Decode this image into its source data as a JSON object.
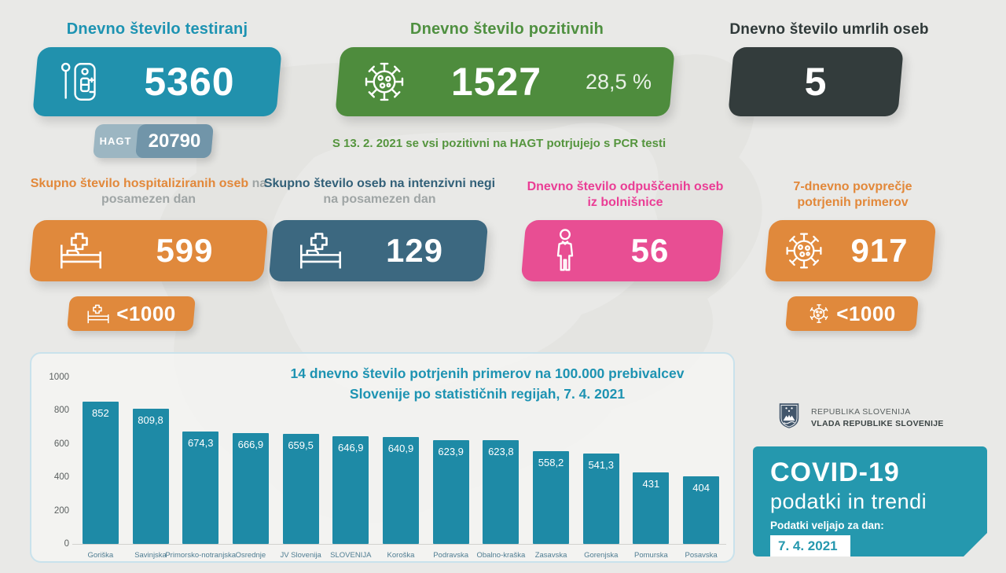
{
  "colors": {
    "background": "#e9e9e7",
    "teal": "#2191ad",
    "green": "#4e8c3d",
    "dark": "#333c3c",
    "orange": "#e0893c",
    "steel": "#3c6880",
    "pink": "#e84e93",
    "bar": "#1e8aa6",
    "covid_box": "#2598ae",
    "hagt_left": "#9cb6c2",
    "hagt_right": "#7195a9"
  },
  "top_row": {
    "tests": {
      "title": "Dnevno število testiranj",
      "value": "5360",
      "badge_label": "HAGT",
      "badge_value": "20790"
    },
    "positives": {
      "title": "Dnevno število pozitivnih",
      "value": "1527",
      "percent": "28,5 %",
      "note": "S 13. 2. 2021 se vsi pozitivni na HAGT potrjujejo s PCR testi"
    },
    "deaths": {
      "title": "Dnevno število umrlih oseb",
      "value": "5"
    }
  },
  "second_row": {
    "hospitalized": {
      "title_bold": "Skupno število hospitaliziranih oseb",
      "title_rest": " na posamezen dan",
      "value": "599",
      "badge_value": "<1000"
    },
    "icu": {
      "title_bold": "Skupno število oseb na intenzivni negi",
      "title_rest": " na posamezen dan",
      "value": "129"
    },
    "discharged": {
      "title": "Dnevno število odpuščenih oseb iz bolnišnice",
      "value": "56"
    },
    "avg7": {
      "title": "7-dnevno povprečje potrjenih primerov",
      "value": "917",
      "badge_value": "<1000"
    }
  },
  "chart_data": {
    "type": "bar",
    "title_bold": "14 dnevno število potrjenih primerov",
    "title_rest": " na 100.000 prebivalcev Slovenije po statističnih regijah, 7. 4. 2021",
    "categories": [
      "Goriška",
      "Savinjska",
      "Primorsko-notranjska",
      "Osrednje",
      "JV Slovenija",
      "SLOVENIJA",
      "Koroška",
      "Podravska",
      "Obalno-kraška",
      "Zasavska",
      "Gorenjska",
      "Pomurska",
      "Posavska"
    ],
    "values": [
      852,
      809.8,
      674.3,
      666.9,
      659.5,
      646.9,
      640.9,
      623.9,
      623.8,
      558.2,
      541.3,
      431,
      404
    ],
    "value_labels": [
      "852",
      "809,8",
      "674,3",
      "666,9",
      "659,5",
      "646,9",
      "640,9",
      "623,9",
      "623,8",
      "558,2",
      "541,3",
      "431",
      "404"
    ],
    "y_ticks": [
      "1000",
      "800",
      "600",
      "400",
      "200",
      "0"
    ],
    "ylim": [
      0,
      1000
    ],
    "xlabel": "",
    "ylabel": "",
    "grid": false,
    "legend": "none"
  },
  "footer": {
    "gov_line1": "REPUBLIKA SLOVENIJA",
    "gov_line2": "VLADA REPUBLIKE SLOVENIJE",
    "covid_title": "COVID-19",
    "covid_subtitle": "podatki in trendi",
    "covid_note": "Podatki veljajo za dan:",
    "covid_date": "7. 4. 2021"
  }
}
